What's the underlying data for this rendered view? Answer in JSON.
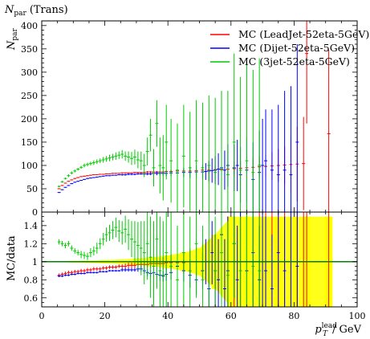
{
  "chart_data": {
    "type": "scatter",
    "title": "N_par (Trans)",
    "title_main": "N",
    "title_sub": "par",
    "title_rest": "(Trans)",
    "ylabel_main": "N",
    "ylabel_sub": "par",
    "xlabel_main": "p",
    "xlabel_sub": "T",
    "xlabel_sup": "lead",
    "xlabel_unit": "/ GeV",
    "ratio_ylabel": "MC/data",
    "xlim": [
      0,
      100
    ],
    "ylim": [
      0,
      410
    ],
    "ratio_ylim": [
      0.5,
      1.55
    ],
    "xticks": [
      "0",
      "20",
      "40",
      "60",
      "80",
      "100"
    ],
    "yticks": [
      "0",
      "50",
      "100",
      "150",
      "200",
      "250",
      "300",
      "350",
      "400"
    ],
    "ratio_yticks": [
      "0.6",
      "0.8",
      "1",
      "1.2",
      "1.4"
    ],
    "legend_position": "top-right",
    "series": [
      {
        "name": "MC (LeadJet-52eta-5GeV)",
        "color": "#ff0000",
        "x": [
          5.5,
          6.5,
          7.5,
          8.5,
          9.5,
          10.5,
          11.5,
          12.5,
          13.5,
          14.5,
          15.5,
          16.5,
          17.5,
          18.5,
          19.5,
          20.5,
          21.5,
          22.5,
          23.5,
          24.5,
          25.5,
          26.5,
          27.5,
          28.5,
          29.5,
          30.5,
          31.5,
          32.5,
          33.5,
          34.5,
          35.5,
          36.5,
          37.5,
          38.5,
          39.5,
          41,
          43,
          45,
          47,
          49,
          51,
          53,
          55,
          57,
          59,
          61,
          63,
          65,
          67,
          69,
          71,
          73,
          75,
          77,
          79,
          81,
          83,
          84,
          91
        ],
        "y": [
          50,
          57,
          62,
          66,
          69,
          72,
          74,
          76,
          77,
          78,
          79,
          80,
          80,
          81,
          81,
          82,
          82,
          83,
          83,
          83,
          84,
          84,
          84,
          84,
          85,
          85,
          85,
          85,
          86,
          86,
          86,
          86,
          86,
          86,
          87,
          87,
          88,
          88,
          88,
          89,
          90,
          90,
          91,
          92,
          92,
          93,
          94,
          95,
          96,
          97,
          98,
          99,
          100,
          101,
          102,
          103,
          104,
          340,
          168
        ],
        "err": [
          1,
          1,
          1,
          1,
          1,
          1,
          1,
          1,
          1,
          1,
          1,
          1,
          1,
          1,
          1,
          1,
          1,
          1,
          1,
          1,
          1,
          1,
          1,
          1,
          1,
          1,
          1,
          2,
          2,
          2,
          2,
          2,
          2,
          2,
          2,
          3,
          3,
          4,
          4,
          5,
          6,
          7,
          8,
          10,
          12,
          14,
          16,
          18,
          20,
          22,
          25,
          30,
          35,
          40,
          60,
          80,
          100,
          150,
          180
        ],
        "ratio": [
          0.85,
          0.86,
          0.87,
          0.88,
          0.88,
          0.89,
          0.89,
          0.9,
          0.9,
          0.91,
          0.91,
          0.92,
          0.92,
          0.92,
          0.93,
          0.93,
          0.94,
          0.94,
          0.94,
          0.95,
          0.95,
          0.95,
          0.96,
          0.96,
          0.96,
          0.97,
          0.97,
          0.97,
          0.97,
          0.98,
          0.98,
          0.98,
          0.98,
          0.98,
          0.99,
          0.99,
          0.99,
          0.99,
          1.0,
          1.0,
          1.0,
          1.0,
          1.0,
          1.0,
          1.0,
          1.0,
          1.0,
          1.0,
          1.0,
          1.0,
          1.0,
          1.0,
          1.0,
          1.0,
          1.0,
          1.0,
          1.0,
          1.0,
          1.0
        ],
        "ratio_err": [
          0.02,
          0.02,
          0.02,
          0.02,
          0.02,
          0.02,
          0.02,
          0.02,
          0.02,
          0.02,
          0.02,
          0.02,
          0.02,
          0.02,
          0.02,
          0.02,
          0.02,
          0.02,
          0.02,
          0.02,
          0.02,
          0.03,
          0.03,
          0.03,
          0.03,
          0.03,
          0.04,
          0.04,
          0.04,
          0.05,
          0.05,
          0.06,
          0.06,
          0.07,
          0.08,
          0.09,
          0.1,
          0.12,
          0.14,
          0.16,
          0.2,
          0.25,
          0.3,
          0.4,
          0.5,
          0.5,
          0.6,
          0.6,
          0.6,
          0.6,
          0.6,
          0.6,
          0.6,
          0.6,
          0.6,
          0.6,
          0.6,
          0.6,
          0.6
        ]
      },
      {
        "name": "MC (Dijet-52eta-5GeV)",
        "color": "#0000ff",
        "x": [
          5.5,
          6.5,
          7.5,
          8.5,
          9.5,
          10.5,
          11.5,
          12.5,
          13.5,
          14.5,
          15.5,
          16.5,
          17.5,
          18.5,
          19.5,
          20.5,
          21.5,
          22.5,
          23.5,
          24.5,
          25.5,
          26.5,
          27.5,
          28.5,
          29.5,
          30.5,
          31.5,
          32.5,
          33.5,
          34.5,
          35.5,
          36.5,
          37.5,
          38.5,
          39.5,
          41,
          43,
          45,
          47,
          49,
          51,
          52,
          53,
          54,
          55,
          56,
          57,
          58,
          59,
          61,
          62,
          63,
          65,
          67,
          69,
          70,
          71,
          73,
          75,
          77,
          79,
          81
        ],
        "y": [
          42,
          48,
          53,
          57,
          61,
          64,
          66,
          68,
          70,
          72,
          73,
          74,
          75,
          76,
          77,
          78,
          78,
          79,
          79,
          80,
          80,
          80,
          81,
          81,
          81,
          82,
          82,
          82,
          82,
          82,
          83,
          83,
          83,
          83,
          83,
          84,
          84,
          85,
          85,
          86,
          86,
          87,
          88,
          89,
          90,
          92,
          95,
          90,
          100,
          95,
          100,
          80,
          90,
          70,
          85,
          100,
          110,
          90,
          80,
          90,
          80,
          150
        ],
        "err": [
          1,
          1,
          1,
          1,
          1,
          1,
          1,
          1,
          1,
          1,
          1,
          1,
          1,
          1,
          1,
          1,
          1,
          1,
          1,
          1,
          2,
          2,
          2,
          2,
          2,
          2,
          2,
          3,
          3,
          3,
          4,
          4,
          5,
          5,
          6,
          7,
          8,
          10,
          12,
          14,
          16,
          18,
          22,
          26,
          30,
          34,
          38,
          42,
          46,
          50,
          55,
          60,
          70,
          80,
          90,
          100,
          110,
          130,
          150,
          170,
          190,
          210
        ],
        "ratio": [
          0.84,
          0.84,
          0.85,
          0.85,
          0.86,
          0.86,
          0.87,
          0.87,
          0.87,
          0.88,
          0.88,
          0.88,
          0.88,
          0.89,
          0.89,
          0.89,
          0.9,
          0.9,
          0.9,
          0.9,
          0.91,
          0.91,
          0.91,
          0.91,
          0.91,
          0.92,
          0.92,
          0.9,
          0.88,
          0.87,
          0.88,
          0.86,
          0.85,
          0.84,
          0.86,
          0.88,
          0.95,
          0.9,
          0.85,
          0.8,
          0.9,
          1.0,
          0.7,
          1.1,
          0.9,
          0.8,
          1.3,
          0.7,
          0.9,
          1.2,
          0.8,
          1.0,
          0.9,
          1.1,
          0.8,
          1.0,
          0.9,
          0.7,
          1.1,
          0.9,
          1.0,
          0.95
        ],
        "ratio_err": [
          0.01,
          0.01,
          0.01,
          0.01,
          0.01,
          0.01,
          0.01,
          0.01,
          0.01,
          0.01,
          0.01,
          0.01,
          0.01,
          0.01,
          0.01,
          0.01,
          0.01,
          0.01,
          0.01,
          0.01,
          0.02,
          0.02,
          0.02,
          0.02,
          0.02,
          0.03,
          0.03,
          0.03,
          0.04,
          0.04,
          0.05,
          0.05,
          0.06,
          0.06,
          0.07,
          0.08,
          0.1,
          0.12,
          0.14,
          0.16,
          0.2,
          0.25,
          0.3,
          0.35,
          0.4,
          0.45,
          0.5,
          0.55,
          0.6,
          0.6,
          0.6,
          0.6,
          0.6,
          0.6,
          0.6,
          0.6,
          0.6,
          0.6,
          0.6,
          0.6,
          0.6,
          0.6
        ]
      },
      {
        "name": "MC (3jet-52eta-5GeV)",
        "color": "#00cc00",
        "x": [
          5.5,
          6.5,
          7.5,
          8.5,
          9.5,
          10.5,
          11.5,
          12.5,
          13.5,
          14.5,
          15.5,
          16.5,
          17.5,
          18.5,
          19.5,
          20.5,
          21.5,
          22.5,
          23.5,
          24.5,
          25.5,
          26.5,
          27.5,
          28.5,
          29.5,
          30.5,
          31.5,
          32.5,
          33.5,
          34.5,
          35.5,
          36.5,
          37.5,
          38.5,
          39.5,
          41,
          43,
          45,
          47,
          49,
          51,
          53,
          55,
          57,
          59,
          61,
          63,
          65,
          67,
          69
        ],
        "y": [
          55,
          65,
          72,
          78,
          84,
          88,
          92,
          96,
          100,
          102,
          104,
          106,
          108,
          110,
          112,
          114,
          116,
          118,
          120,
          122,
          124,
          120,
          118,
          115,
          118,
          112,
          110,
          100,
          130,
          165,
          95,
          190,
          100,
          95,
          150,
          110,
          90,
          120,
          95,
          110,
          95,
          100,
          85,
          90,
          80,
          150,
          90,
          110,
          85,
          100
        ],
        "err": [
          2,
          2,
          2,
          3,
          3,
          3,
          3,
          3,
          4,
          4,
          4,
          5,
          5,
          5,
          6,
          6,
          7,
          7,
          8,
          8,
          9,
          10,
          12,
          14,
          16,
          18,
          20,
          25,
          30,
          35,
          40,
          50,
          60,
          70,
          80,
          90,
          100,
          110,
          120,
          130,
          140,
          150,
          160,
          170,
          180,
          190,
          200,
          210,
          220,
          230
        ],
        "ratio": [
          1.22,
          1.2,
          1.18,
          1.2,
          1.15,
          1.12,
          1.1,
          1.08,
          1.07,
          1.06,
          1.1,
          1.12,
          1.15,
          1.2,
          1.25,
          1.3,
          1.32,
          1.35,
          1.38,
          1.34,
          1.32,
          1.36,
          1.3,
          1.25,
          1.22,
          1.18,
          1.15,
          1.1,
          1.2,
          1.05,
          0.95,
          1.25,
          0.9,
          0.85,
          1.1,
          0.95,
          0.8,
          1.1,
          0.9,
          1.2,
          0.8,
          1.0,
          0.9,
          1.1,
          0.85,
          1.2,
          0.9,
          1.0,
          0.95,
          0.9
        ],
        "ratio_err": [
          0.03,
          0.03,
          0.03,
          0.03,
          0.03,
          0.03,
          0.03,
          0.04,
          0.04,
          0.04,
          0.05,
          0.05,
          0.06,
          0.06,
          0.07,
          0.08,
          0.09,
          0.1,
          0.11,
          0.12,
          0.13,
          0.15,
          0.17,
          0.2,
          0.23,
          0.26,
          0.3,
          0.35,
          0.4,
          0.45,
          0.5,
          0.55,
          0.6,
          0.6,
          0.6,
          0.6,
          0.6,
          0.6,
          0.6,
          0.6,
          0.6,
          0.6,
          0.6,
          0.6,
          0.6,
          0.6,
          0.6,
          0.6,
          0.6,
          0.6
        ]
      }
    ],
    "ratio_band": {
      "color": "#ffff00",
      "x": [
        5,
        10,
        15,
        20,
        25,
        30,
        35,
        40,
        45,
        50,
        55,
        60,
        65,
        70,
        75,
        80,
        84,
        91
      ],
      "half_width": [
        0.005,
        0.008,
        0.012,
        0.018,
        0.025,
        0.035,
        0.05,
        0.07,
        0.1,
        0.15,
        0.3,
        0.5,
        0.5,
        0.5,
        0.5,
        0.5,
        0.5,
        0.5
      ]
    }
  }
}
